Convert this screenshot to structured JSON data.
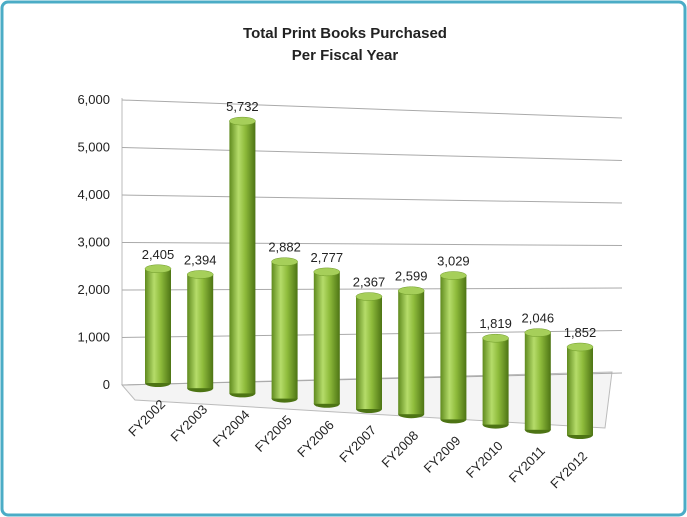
{
  "chart_data": {
    "type": "bar3d",
    "title": [
      "Total Print Books Purchased",
      "Per Fiscal Year"
    ],
    "categories": [
      "FY2002",
      "FY2003",
      "FY2004",
      "FY2005",
      "FY2006",
      "FY2007",
      "FY2008",
      "FY2009",
      "FY2010",
      "FY2011",
      "FY2012"
    ],
    "values": [
      2405,
      2394,
      5732,
      2882,
      2777,
      2367,
      2599,
      3029,
      1819,
      2046,
      1852
    ],
    "value_labels": [
      "2,405",
      "2,394",
      "5,732",
      "2,882",
      "2,777",
      "2,367",
      "2,599",
      "3,029",
      "1,819",
      "2,046",
      "1,852"
    ],
    "color": "#8fbc3c",
    "ylim": [
      0,
      6000
    ],
    "yticks": [
      0,
      {
        "value": 1000,
        "label": "1,000"
      },
      {
        "value": 2000,
        "label": "2,000"
      },
      {
        "value": 3000,
        "label": "3,000"
      },
      {
        "value": 4000,
        "label": "4,000"
      },
      {
        "value": 5000,
        "label": "5,000"
      },
      {
        "value": 6000,
        "label": "6,000"
      }
    ],
    "grid": true
  }
}
